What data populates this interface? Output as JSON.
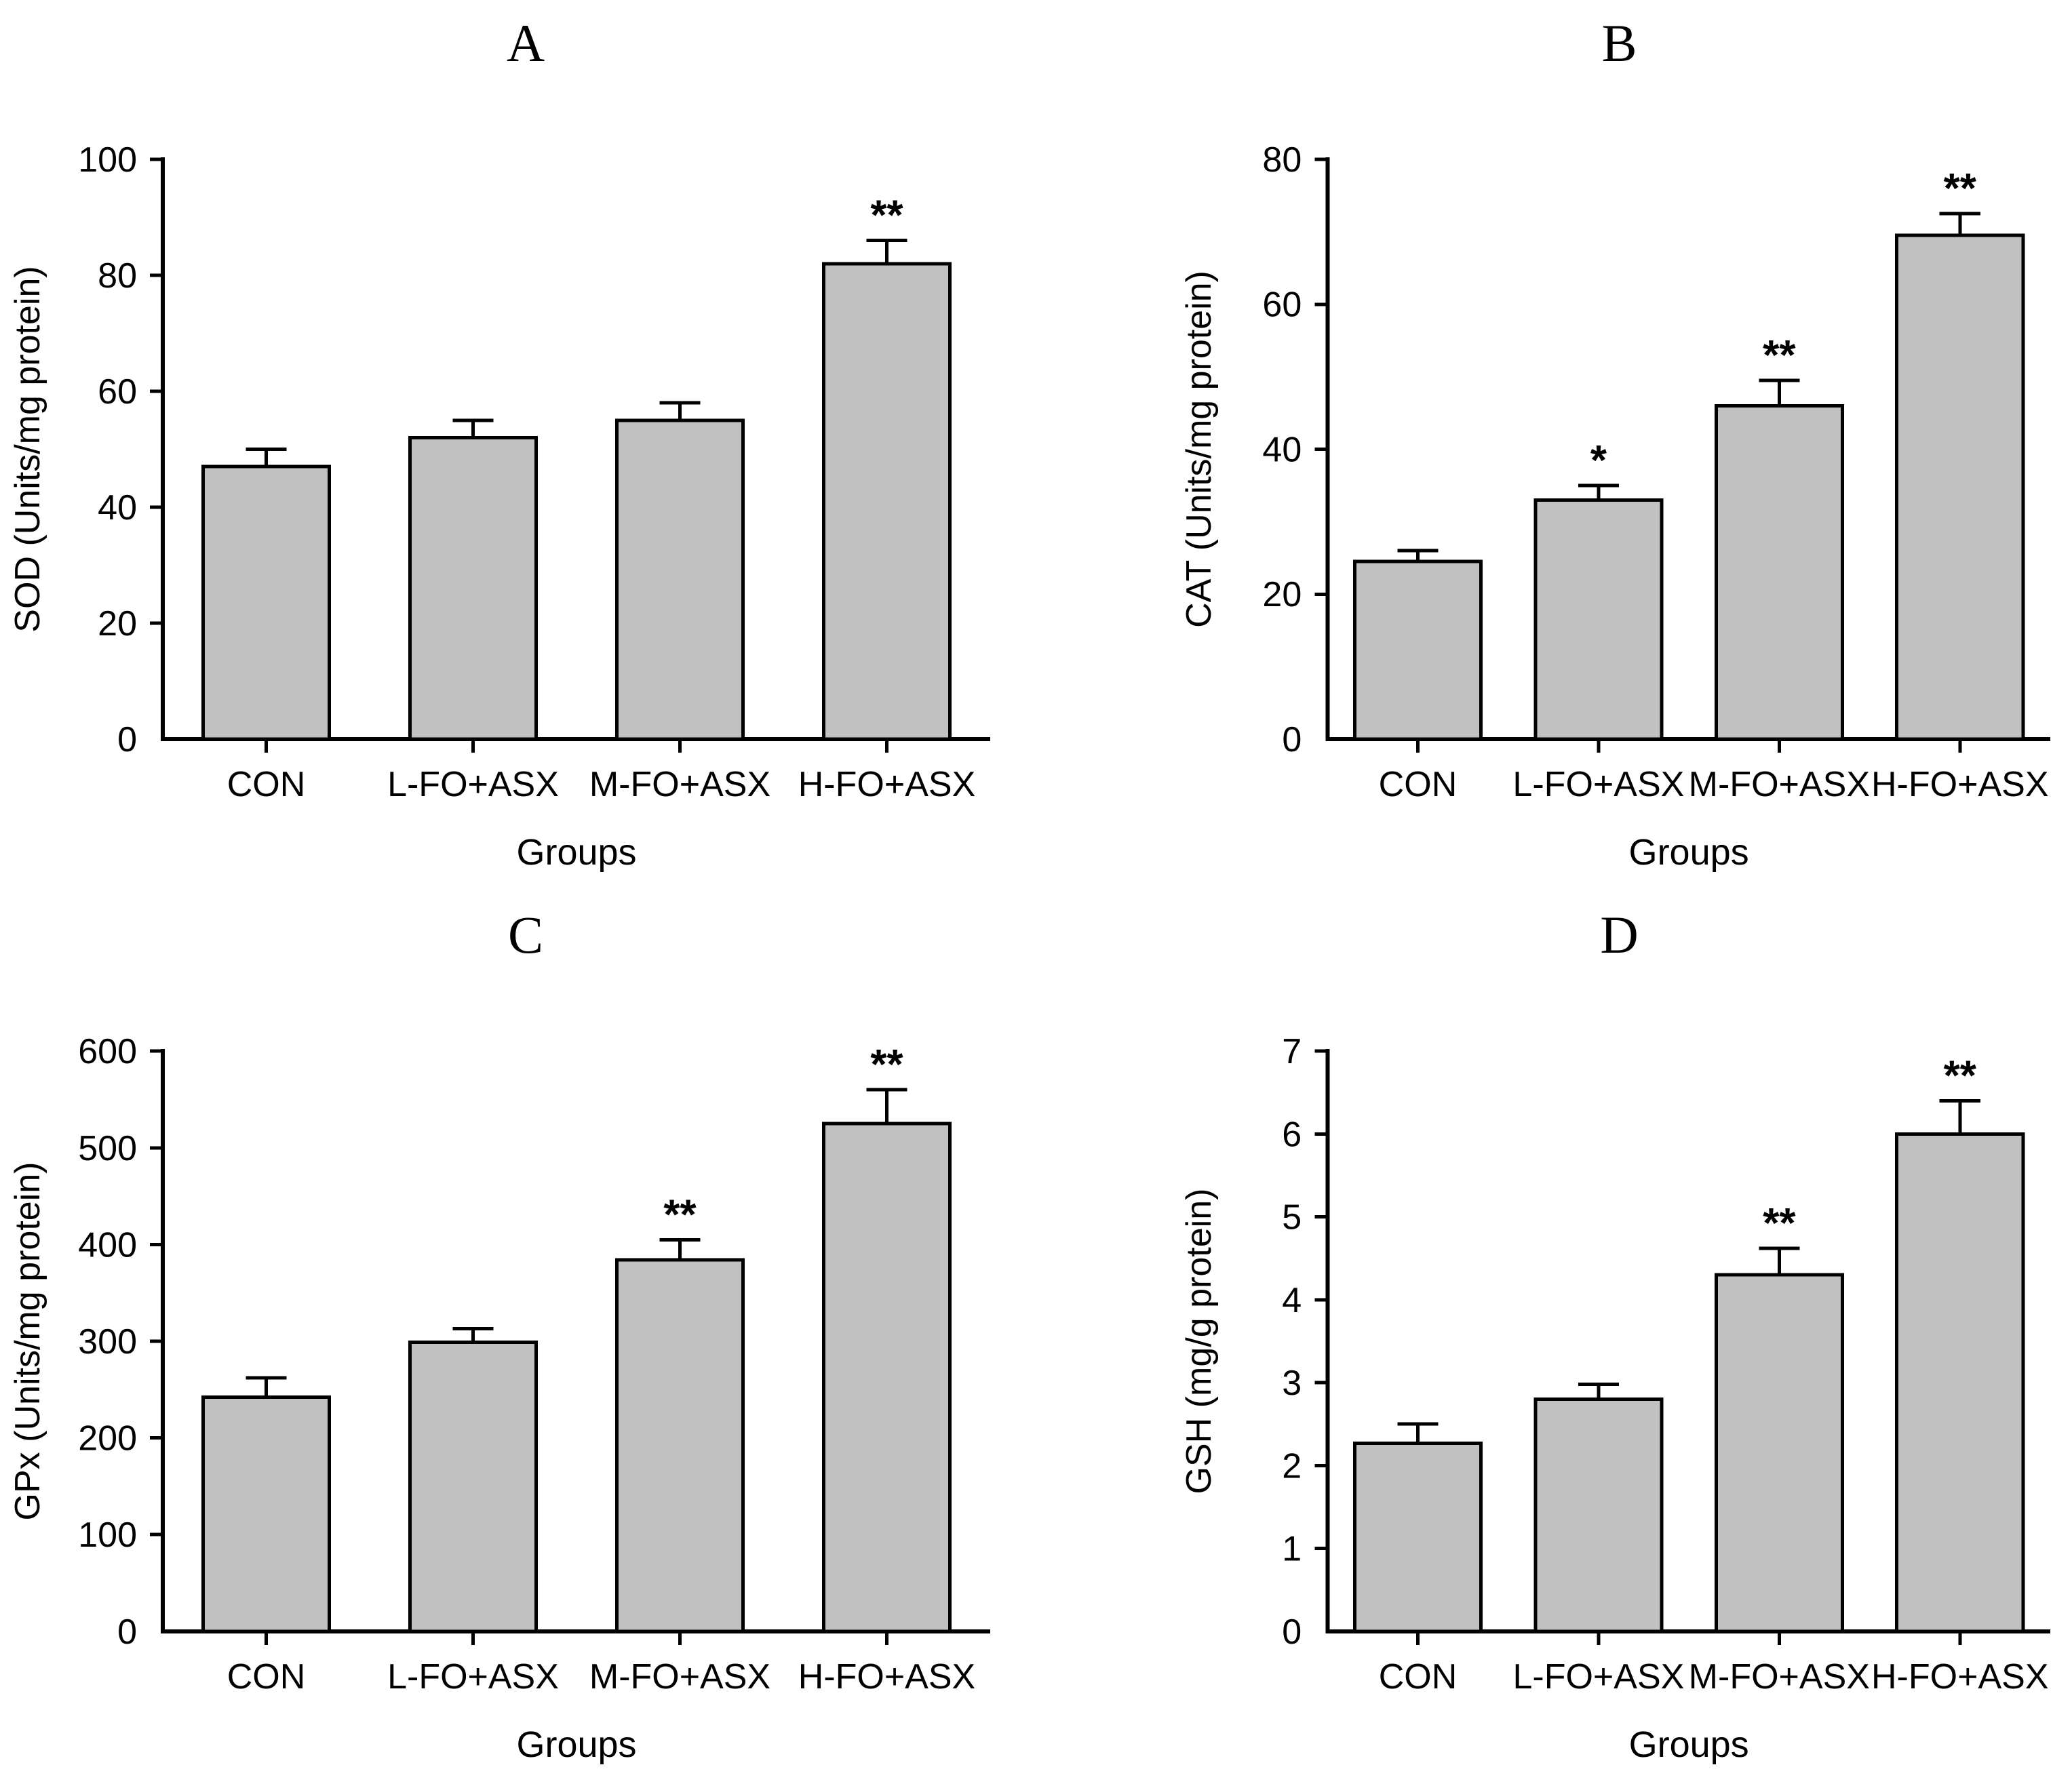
{
  "figure": {
    "panels_order": [
      "A",
      "B",
      "C",
      "D"
    ],
    "colors": {
      "background": "#ffffff",
      "bar_fill": "#c1c1c1",
      "bar_border": "#000000",
      "text": "#000000"
    }
  },
  "chart_data": [
    {
      "type": "bar",
      "panel_label": "A",
      "ylabel": "SOD (Units/mg protein)",
      "xlabel": "Groups",
      "categories": [
        "CON",
        "L-FO+ASX",
        "M-FO+ASX",
        "H-FO+ASX"
      ],
      "values": [
        47,
        52,
        55,
        82
      ],
      "errors_plus": [
        3,
        3,
        3,
        4
      ],
      "significance": [
        "",
        "",
        "",
        "**"
      ],
      "ylim": [
        0,
        100
      ],
      "yticks": [
        0,
        20,
        40,
        60,
        80,
        100
      ],
      "grid": false,
      "legend": null
    },
    {
      "type": "bar",
      "panel_label": "B",
      "ylabel": "CAT (Units/mg protein)",
      "xlabel": "Groups",
      "categories": [
        "CON",
        "L-FO+ASX",
        "M-FO+ASX",
        "H-FO+ASX"
      ],
      "values": [
        24.5,
        33,
        46,
        69.5
      ],
      "errors_plus": [
        1.5,
        2,
        3.5,
        3
      ],
      "significance": [
        "",
        "*",
        "**",
        "**"
      ],
      "ylim": [
        0,
        80
      ],
      "yticks": [
        0,
        20,
        40,
        60,
        80
      ],
      "grid": false,
      "legend": null
    },
    {
      "type": "bar",
      "panel_label": "C",
      "ylabel": "GPx (Units/mg protein)",
      "xlabel": "Groups",
      "categories": [
        "CON",
        "L-FO+ASX",
        "M-FO+ASX",
        "H-FO+ASX"
      ],
      "values": [
        242,
        299,
        384,
        525
      ],
      "errors_plus": [
        20,
        14,
        21,
        35
      ],
      "significance": [
        "",
        "",
        "**",
        "**"
      ],
      "ylim": [
        0,
        600
      ],
      "yticks": [
        0,
        100,
        200,
        300,
        400,
        500,
        600
      ],
      "grid": false,
      "legend": null
    },
    {
      "type": "bar",
      "panel_label": "D",
      "ylabel": "GSH (mg/g protein)",
      "xlabel": "Groups",
      "categories": [
        "CON",
        "L-FO+ASX",
        "M-FO+ASX",
        "H-FO+ASX"
      ],
      "values": [
        2.27,
        2.8,
        4.3,
        6.0
      ],
      "errors_plus": [
        0.23,
        0.18,
        0.32,
        0.4
      ],
      "significance": [
        "",
        "",
        "**",
        "**"
      ],
      "ylim": [
        0,
        7
      ],
      "yticks": [
        0,
        1,
        2,
        3,
        4,
        5,
        6,
        7
      ],
      "grid": false,
      "legend": null
    }
  ]
}
